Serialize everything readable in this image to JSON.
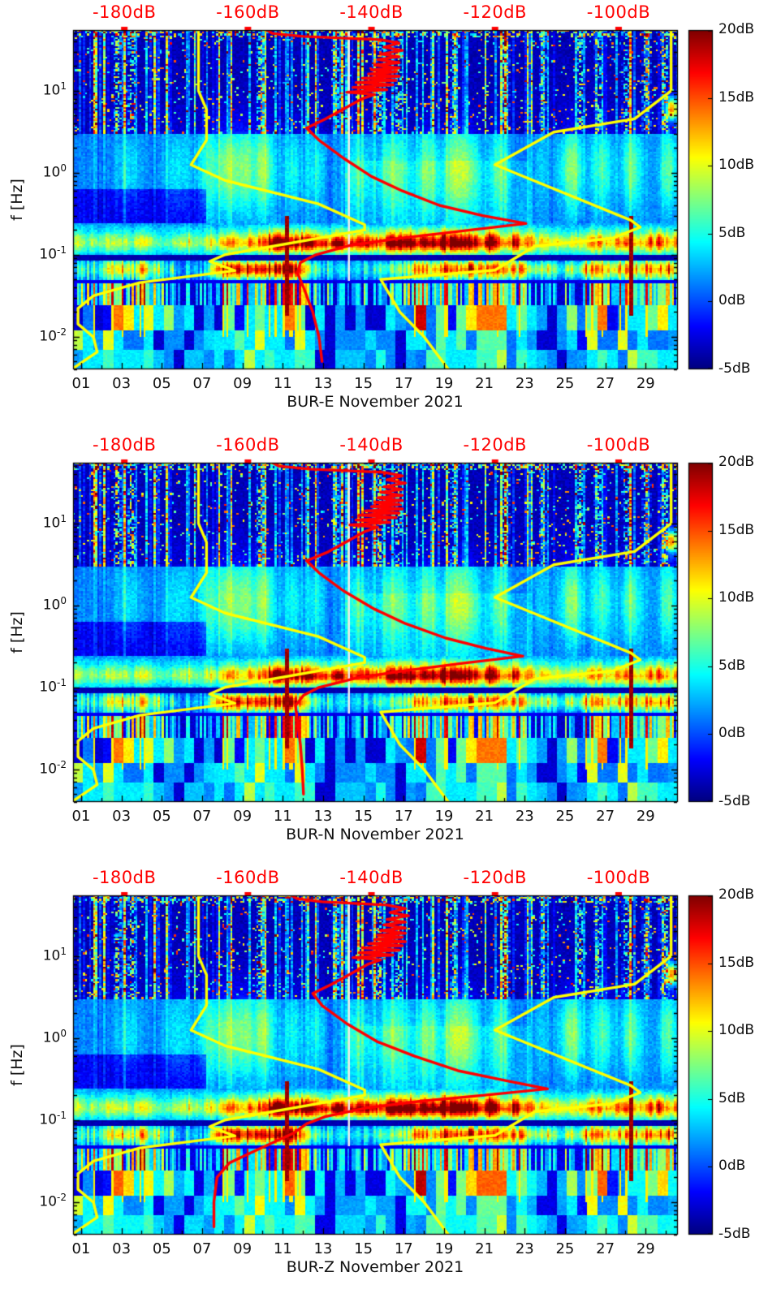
{
  "chart_data": {
    "type": "heatmap",
    "description": "Three stacked 30-day seismic PSD spectrograms (jet colormap) with overlaid red station median PSD curve and yellow Peterson NHNM/NLNM reference noise model curves plotted against a secondary red dB axis on top.",
    "shared": {
      "ylabel": "f [Hz]",
      "y_axis": {
        "scale": "log",
        "range_hz": [
          0.004,
          55
        ],
        "ticks": [
          {
            "base": "10",
            "exp": "1",
            "value_hz": 10
          },
          {
            "base": "10",
            "exp": "0",
            "value_hz": 1
          },
          {
            "base": "10",
            "exp": "-1",
            "value_hz": 0.1
          },
          {
            "base": "10",
            "exp": "-2",
            "value_hz": 0.01
          }
        ]
      },
      "x_axis": {
        "range_days": [
          0,
          30
        ],
        "tick_labels": [
          "01",
          "03",
          "05",
          "07",
          "09",
          "11",
          "13",
          "15",
          "17",
          "19",
          "21",
          "23",
          "25",
          "27",
          "29"
        ],
        "tick_days": [
          1,
          3,
          5,
          7,
          9,
          11,
          13,
          15,
          17,
          19,
          21,
          23,
          25,
          27,
          29
        ]
      },
      "top_axis": {
        "color": "#ff0000",
        "range_db": [
          -188.3,
          -90.4
        ],
        "tick_labels": [
          "-180dB",
          "-160dB",
          "-140dB",
          "-120dB",
          "-100dB"
        ],
        "tick_values_db": [
          -180,
          -160,
          -140,
          -120,
          -100
        ]
      },
      "colorbar": {
        "range_db": [
          -5,
          20
        ],
        "tick_labels": [
          "20dB",
          "15dB",
          "10dB",
          "5dB",
          "0dB",
          "-5dB"
        ],
        "tick_values_db": [
          20,
          15,
          10,
          5,
          0,
          -5
        ],
        "colormap": "jet"
      },
      "overlay_curves": {
        "nhnm": {
          "name": "Peterson New High Noise Model",
          "color": "#ffff00",
          "points_hz_db": [
            [
              0.0028,
              -126
            ],
            [
              0.005,
              -128.5
            ],
            [
              0.01,
              -131.5
            ],
            [
              0.02,
              -135.4
            ],
            [
              0.05,
              -138.5
            ],
            [
              0.0649,
              -120
            ],
            [
              0.127,
              -113.5
            ],
            [
              0.159,
              -101
            ],
            [
              0.217,
              -96.5
            ],
            [
              0.263,
              -98
            ],
            [
              1.25,
              -120
            ],
            [
              3.13,
              -110.5
            ],
            [
              4.55,
              -97.4
            ],
            [
              10,
              -91.5
            ],
            [
              55,
              -91.5
            ]
          ]
        },
        "nlnm": {
          "name": "Peterson New Low Noise Model",
          "color": "#ffff00",
          "points_hz_db": [
            [
              0.003,
              -191
            ],
            [
              0.0065,
              -184.4
            ],
            [
              0.0099,
              -185
            ],
            [
              0.0143,
              -187.5
            ],
            [
              0.0222,
              -187.5
            ],
            [
              0.0316,
              -185
            ],
            [
              0.0457,
              -177.5
            ],
            [
              0.064,
              -162.1
            ],
            [
              0.083,
              -166.2
            ],
            [
              0.1,
              -163.7
            ],
            [
              0.2,
              -141.1
            ],
            [
              0.233,
              -141.1
            ],
            [
              0.417,
              -148.6
            ],
            [
              0.806,
              -163.7
            ],
            [
              1.25,
              -169.2
            ],
            [
              2.5,
              -166.7
            ],
            [
              5.88,
              -166.7
            ],
            [
              10,
              -168
            ],
            [
              55,
              -168
            ]
          ]
        }
      }
    },
    "panels": [
      {
        "id": "bur-e",
        "xlabel": "BUR-E November 2021",
        "median_curve_color": "#ff0000",
        "median_psd_hz_db": [
          [
            0.005,
            -148
          ],
          [
            0.01,
            -148.5
          ],
          [
            0.02,
            -149.5
          ],
          [
            0.04,
            -151
          ],
          [
            0.06,
            -152
          ],
          [
            0.08,
            -151.5
          ],
          [
            0.1,
            -149
          ],
          [
            0.13,
            -143.5
          ],
          [
            0.16,
            -135
          ],
          [
            0.2,
            -124
          ],
          [
            0.24,
            -115
          ],
          [
            0.3,
            -122
          ],
          [
            0.4,
            -129
          ],
          [
            0.6,
            -135
          ],
          [
            0.9,
            -140
          ],
          [
            1.5,
            -144.5
          ],
          [
            2.5,
            -148.5
          ],
          [
            3.5,
            -150.5
          ],
          [
            4.5,
            -147.5
          ],
          [
            6,
            -144.5
          ],
          [
            8,
            -141.5
          ],
          [
            9,
            -139.5
          ],
          [
            9.6,
            -144
          ],
          [
            10.3,
            -137.5
          ],
          [
            11,
            -143
          ],
          [
            11.8,
            -136.5
          ],
          [
            12.6,
            -142.5
          ],
          [
            13.4,
            -136
          ],
          [
            14.2,
            -141.5
          ],
          [
            15,
            -135.5
          ],
          [
            16,
            -140.5
          ],
          [
            17,
            -136
          ],
          [
            18,
            -140
          ],
          [
            19,
            -135.5
          ],
          [
            20.5,
            -139.5
          ],
          [
            22,
            -135.5
          ],
          [
            24,
            -139
          ],
          [
            26,
            -135.5
          ],
          [
            28,
            -138.5
          ],
          [
            31,
            -135
          ],
          [
            34,
            -138
          ],
          [
            38,
            -135.5
          ],
          [
            42,
            -138.5
          ],
          [
            46,
            -151
          ],
          [
            50,
            -156
          ],
          [
            55,
            -157
          ]
        ]
      },
      {
        "id": "bur-n",
        "xlabel": "BUR-N November 2021",
        "median_curve_color": "#ff0000",
        "median_psd_hz_db": [
          [
            0.005,
            -151
          ],
          [
            0.01,
            -151.2
          ],
          [
            0.02,
            -151.5
          ],
          [
            0.04,
            -152
          ],
          [
            0.06,
            -152.3
          ],
          [
            0.08,
            -151
          ],
          [
            0.1,
            -148.5
          ],
          [
            0.13,
            -142.5
          ],
          [
            0.16,
            -134.5
          ],
          [
            0.2,
            -124.5
          ],
          [
            0.24,
            -115.5
          ],
          [
            0.3,
            -121.5
          ],
          [
            0.4,
            -128
          ],
          [
            0.6,
            -134.5
          ],
          [
            0.9,
            -139.5
          ],
          [
            1.5,
            -144.5
          ],
          [
            2.5,
            -148.5
          ],
          [
            3.5,
            -150.5
          ],
          [
            4.5,
            -147
          ],
          [
            6,
            -144
          ],
          [
            8,
            -141
          ],
          [
            9,
            -139
          ],
          [
            9.6,
            -143.5
          ],
          [
            10.3,
            -137
          ],
          [
            11,
            -142.5
          ],
          [
            11.8,
            -136
          ],
          [
            12.6,
            -142
          ],
          [
            13.4,
            -135.5
          ],
          [
            14.2,
            -141
          ],
          [
            15,
            -135
          ],
          [
            16,
            -140
          ],
          [
            17,
            -135.5
          ],
          [
            18,
            -139.5
          ],
          [
            19,
            -135
          ],
          [
            20.5,
            -139
          ],
          [
            22,
            -135
          ],
          [
            24,
            -138.5
          ],
          [
            26,
            -135
          ],
          [
            28,
            -138
          ],
          [
            31,
            -134.5
          ],
          [
            34,
            -137.5
          ],
          [
            38,
            -135
          ],
          [
            42,
            -138
          ],
          [
            46,
            -150
          ],
          [
            50,
            -155
          ],
          [
            55,
            -156
          ]
        ]
      },
      {
        "id": "bur-z",
        "xlabel": "BUR-Z November 2021",
        "median_curve_color": "#ff0000",
        "median_psd_hz_db": [
          [
            0.005,
            -165.5
          ],
          [
            0.01,
            -165.5
          ],
          [
            0.02,
            -165
          ],
          [
            0.03,
            -163
          ],
          [
            0.04,
            -159.5
          ],
          [
            0.055,
            -155.5
          ],
          [
            0.07,
            -152.5
          ],
          [
            0.09,
            -150.5
          ],
          [
            0.11,
            -147.5
          ],
          [
            0.14,
            -141
          ],
          [
            0.17,
            -132
          ],
          [
            0.2,
            -122
          ],
          [
            0.24,
            -111.5
          ],
          [
            0.3,
            -118
          ],
          [
            0.4,
            -126
          ],
          [
            0.6,
            -133
          ],
          [
            0.9,
            -139
          ],
          [
            1.5,
            -144
          ],
          [
            2.5,
            -148
          ],
          [
            3.5,
            -149.5
          ],
          [
            4.5,
            -146.5
          ],
          [
            6,
            -143.5
          ],
          [
            8,
            -140.5
          ],
          [
            9,
            -138.5
          ],
          [
            9.6,
            -143
          ],
          [
            10.3,
            -136.5
          ],
          [
            11,
            -142
          ],
          [
            11.8,
            -135.5
          ],
          [
            12.6,
            -141.5
          ],
          [
            13.4,
            -135
          ],
          [
            14.2,
            -140.5
          ],
          [
            15,
            -134.5
          ],
          [
            16,
            -139.5
          ],
          [
            17,
            -135
          ],
          [
            18,
            -139
          ],
          [
            19,
            -134.5
          ],
          [
            20.5,
            -138.5
          ],
          [
            22,
            -134.5
          ],
          [
            24,
            -138
          ],
          [
            26,
            -134.5
          ],
          [
            28,
            -137.5
          ],
          [
            31,
            -134
          ],
          [
            34,
            -137
          ],
          [
            38,
            -134.5
          ],
          [
            42,
            -137.5
          ],
          [
            46,
            -148
          ],
          [
            50,
            -152
          ],
          [
            55,
            -153
          ]
        ]
      }
    ]
  }
}
